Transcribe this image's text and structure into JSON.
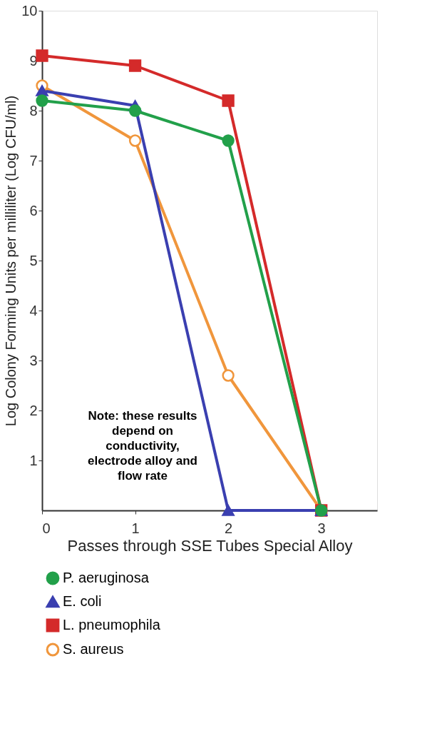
{
  "chart_data": {
    "type": "line",
    "xlabel": "Passes through  SSE Tubes  Special Alloy",
    "ylabel": "Log Colony Forming Units per milliliter (Log CFU/ml)",
    "x": [
      0,
      1,
      2,
      3
    ],
    "xlim": [
      0,
      3.6
    ],
    "xticks": [
      0,
      1,
      2,
      3
    ],
    "ylim": [
      0,
      10
    ],
    "yticks": [
      1,
      2,
      3,
      4,
      5,
      6,
      7,
      8,
      9,
      10
    ],
    "grid": false,
    "legend": "bottom",
    "line_style": "solid",
    "series": [
      {
        "name": "P. aeruginosa",
        "color": "#22a04a",
        "marker": "circle",
        "values": [
          8.2,
          8.0,
          7.4,
          0
        ]
      },
      {
        "name": "E. coli",
        "color": "#3a3fb0",
        "marker": "triangle",
        "values": [
          8.4,
          8.1,
          0,
          0
        ]
      },
      {
        "name": "L. pneumophila",
        "color": "#d42a2a",
        "marker": "square",
        "values": [
          9.1,
          8.9,
          8.2,
          0
        ]
      },
      {
        "name": "S. aureus",
        "color": "#f0963c",
        "marker": "open circle",
        "values": [
          8.5,
          7.4,
          2.7,
          0
        ]
      }
    ],
    "annotations": [
      "Note: these results depend on conductivity, electrode alloy and flow rate"
    ]
  }
}
